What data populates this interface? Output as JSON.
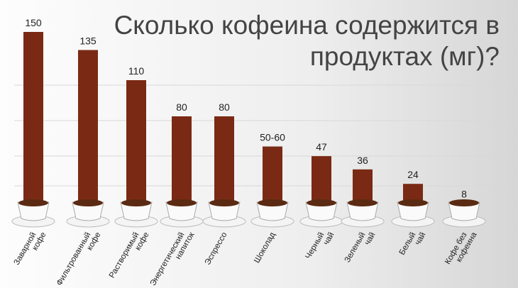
{
  "chart_data": {
    "type": "bar",
    "title": "Сколько кофеина содержится в продуктах (мг)?",
    "categories": [
      [
        "Заварной",
        "кофе"
      ],
      [
        "Фильтрованный",
        "кофе"
      ],
      [
        "Растворимый",
        "кофе"
      ],
      [
        "Энергетический",
        "напиток"
      ],
      [
        "Эспрессо"
      ],
      [
        "Шоколад"
      ],
      [
        "Черный",
        "чай"
      ],
      [
        "Зеленый",
        "чай"
      ],
      [
        "Белый",
        "чай"
      ],
      [
        "Кофе без",
        "кофеина"
      ]
    ],
    "values": [
      150,
      135,
      110,
      80,
      80,
      55,
      47,
      36,
      24,
      8
    ],
    "value_labels": [
      "150",
      "135",
      "110",
      "80",
      "80",
      "50-60",
      "47",
      "36",
      "24",
      "8"
    ],
    "color": "#7a2a14"
  }
}
